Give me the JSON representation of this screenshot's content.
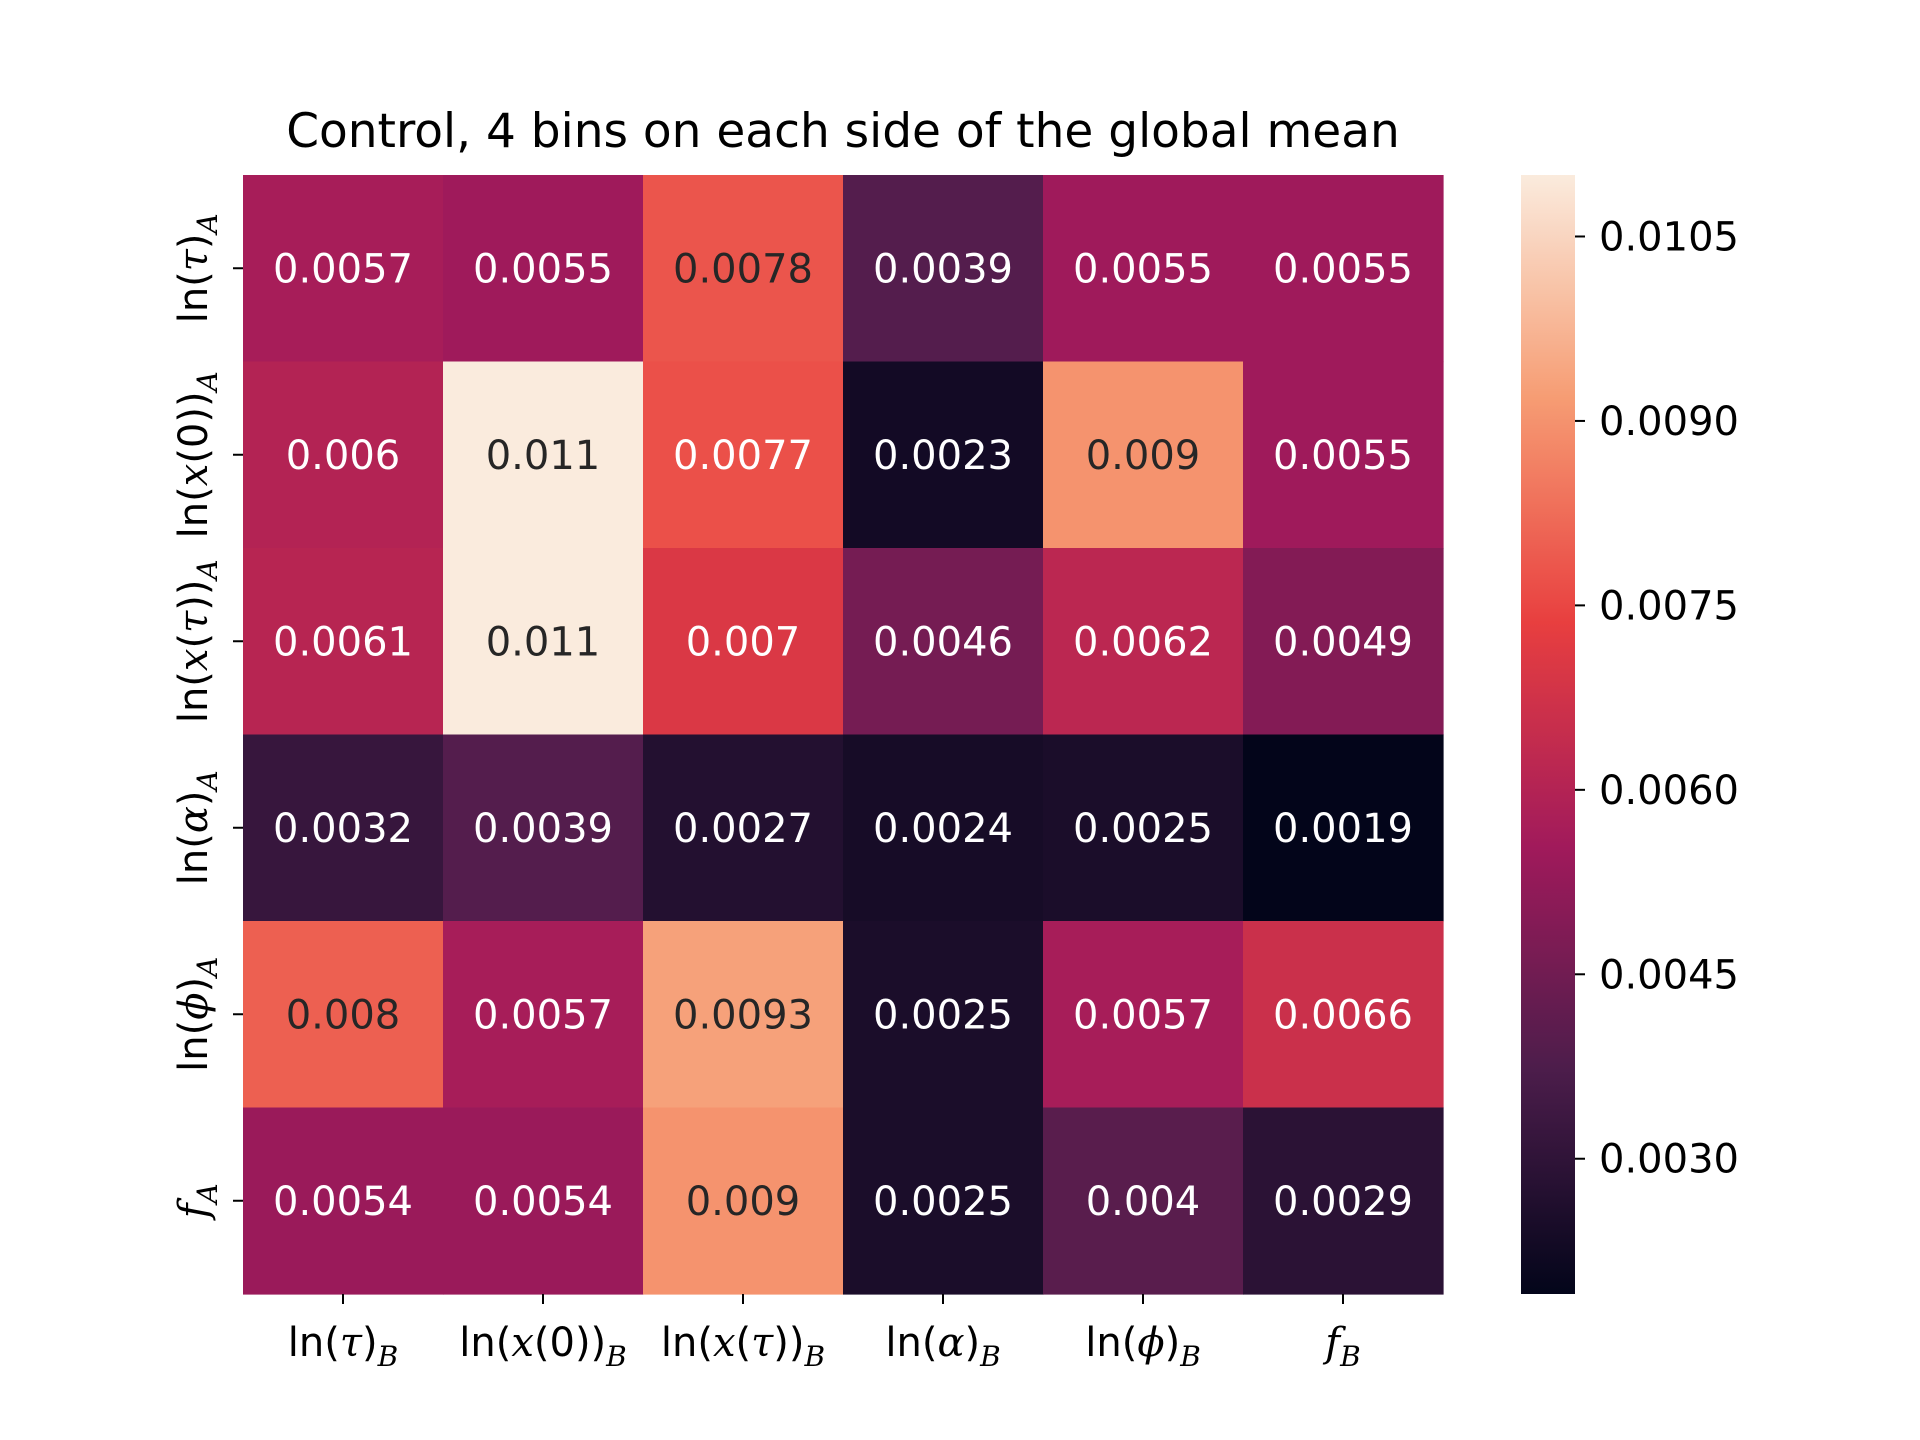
{
  "chart_data": {
    "type": "heatmap",
    "title": "Control, 4 bins on each side of the global mean",
    "x_categories": [
      "ln(τ)_B",
      "ln(x(0))_B",
      "ln(x(τ))_B",
      "ln(α)_B",
      "ln(ϕ)_B",
      "f_B"
    ],
    "y_categories": [
      "ln(τ)_A",
      "ln(x(0))_A",
      "ln(x(τ))_A",
      "ln(α)_A",
      "ln(ϕ)_A",
      "f_A"
    ],
    "values": [
      [
        0.0057,
        0.0055,
        0.0078,
        0.0039,
        0.0055,
        0.0055
      ],
      [
        0.006,
        0.011,
        0.0077,
        0.0023,
        0.009,
        0.0055
      ],
      [
        0.0061,
        0.011,
        0.007,
        0.0046,
        0.0062,
        0.0049
      ],
      [
        0.0032,
        0.0039,
        0.0027,
        0.0024,
        0.0025,
        0.0019
      ],
      [
        0.008,
        0.0057,
        0.0093,
        0.0025,
        0.0057,
        0.0066
      ],
      [
        0.0054,
        0.0054,
        0.009,
        0.0025,
        0.004,
        0.0029
      ]
    ],
    "value_labels": [
      [
        "0.0057",
        "0.0055",
        "0.0078",
        "0.0039",
        "0.0055",
        "0.0055"
      ],
      [
        "0.006",
        "0.011",
        "0.0077",
        "0.0023",
        "0.009",
        "0.0055"
      ],
      [
        "0.0061",
        "0.011",
        "0.007",
        "0.0046",
        "0.0062",
        "0.0049"
      ],
      [
        "0.0032",
        "0.0039",
        "0.0027",
        "0.0024",
        "0.0025",
        "0.0019"
      ],
      [
        "0.008",
        "0.0057",
        "0.0093",
        "0.0025",
        "0.0057",
        "0.0066"
      ],
      [
        "0.0054",
        "0.0054",
        "0.009",
        "0.0025",
        "0.004",
        "0.0029"
      ]
    ],
    "colorbar": {
      "range": [
        0.0019,
        0.011
      ],
      "ticks": [
        0.0105,
        0.009,
        0.0075,
        0.006,
        0.0045,
        0.003
      ],
      "tick_labels": [
        "0.0105",
        "0.0090",
        "0.0075",
        "0.0060",
        "0.0045",
        "0.0030"
      ]
    },
    "colormap": [
      "#03051a",
      "#4c1d4b",
      "#a11a5b",
      "#e83f3f",
      "#f69c73",
      "#faebdd"
    ],
    "grid": false,
    "legend": "colorbar-right"
  }
}
